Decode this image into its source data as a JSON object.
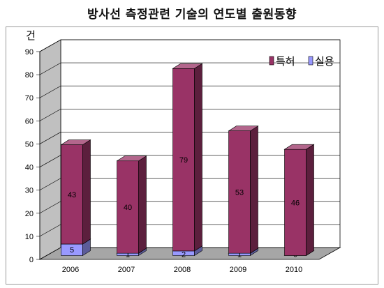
{
  "chart_data": {
    "type": "bar",
    "stacked": true,
    "three_d": true,
    "title": "방사선 측정관련 기술의 연도별 출원동향",
    "ylabel": "건",
    "categories": [
      "2006",
      "2007",
      "2008",
      "2009",
      "2010"
    ],
    "ylim": [
      0,
      90
    ],
    "yticks": [
      0,
      10,
      20,
      30,
      40,
      50,
      60,
      70,
      80,
      90
    ],
    "grid": true,
    "legend_position": "top-right",
    "series": [
      {
        "name": "실용",
        "values": [
          5,
          1,
          2,
          1,
          0
        ],
        "color": "#9999ff"
      },
      {
        "name": "특허",
        "values": [
          43,
          40,
          79,
          53,
          46
        ],
        "color": "#993366"
      }
    ]
  }
}
